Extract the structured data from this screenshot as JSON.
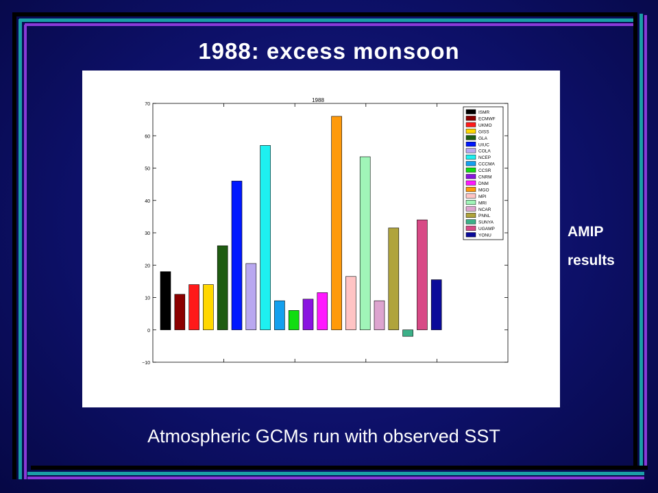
{
  "slide": {
    "title": "1988: excess monsoon",
    "side_note_line1": "AMIP",
    "side_note_line2": "results",
    "caption": "Atmospheric GCMs run with observed SST"
  },
  "colors": {
    "frame_black": "#000000",
    "frame_teal": "#1a9fa6",
    "frame_purple": "#8a3ad8",
    "background": "#0d1068"
  },
  "chart_data": {
    "type": "bar",
    "title": "1988",
    "xlabel": "",
    "ylabel": "",
    "ylim": [
      -10,
      70
    ],
    "yticks": [
      -10,
      0,
      10,
      20,
      30,
      40,
      50,
      60,
      70
    ],
    "grid": false,
    "legend_position": "top-right",
    "series": [
      {
        "name": "ISMR",
        "value": 18,
        "color": "#000000"
      },
      {
        "name": "ECMWF",
        "value": 11,
        "color": "#8b0000"
      },
      {
        "name": "UKMO",
        "value": 14,
        "color": "#ff1a1a"
      },
      {
        "name": "GISS",
        "value": 14,
        "color": "#ffd700"
      },
      {
        "name": "GLA",
        "value": 26,
        "color": "#1f5c12"
      },
      {
        "name": "UIUC",
        "value": 46,
        "color": "#0018ff"
      },
      {
        "name": "COLA",
        "value": 20.5,
        "color": "#b9a8f0"
      },
      {
        "name": "NCEP",
        "value": 57,
        "color": "#1ef0f0"
      },
      {
        "name": "CCCMA",
        "value": 9,
        "color": "#14a0ee"
      },
      {
        "name": "CCSR",
        "value": 6,
        "color": "#11dd11"
      },
      {
        "name": "CNRM",
        "value": 9.5,
        "color": "#8a14e0"
      },
      {
        "name": "DNM",
        "value": 11.5,
        "color": "#ff18ff"
      },
      {
        "name": "MGO",
        "value": 66,
        "color": "#ff9a0a"
      },
      {
        "name": "MPI",
        "value": 16.5,
        "color": "#ffc4c4"
      },
      {
        "name": "MRI",
        "value": 53.5,
        "color": "#a0f5b8"
      },
      {
        "name": "NCAR",
        "value": 9,
        "color": "#dda4cf"
      },
      {
        "name": "PNNL",
        "value": 31.5,
        "color": "#b0a43c"
      },
      {
        "name": "SUNYA",
        "value": -2,
        "color": "#3cb088"
      },
      {
        "name": "UGAMP",
        "value": 34,
        "color": "#d84a86"
      },
      {
        "name": "YONU",
        "value": 15.5,
        "color": "#0a0a99"
      }
    ]
  }
}
